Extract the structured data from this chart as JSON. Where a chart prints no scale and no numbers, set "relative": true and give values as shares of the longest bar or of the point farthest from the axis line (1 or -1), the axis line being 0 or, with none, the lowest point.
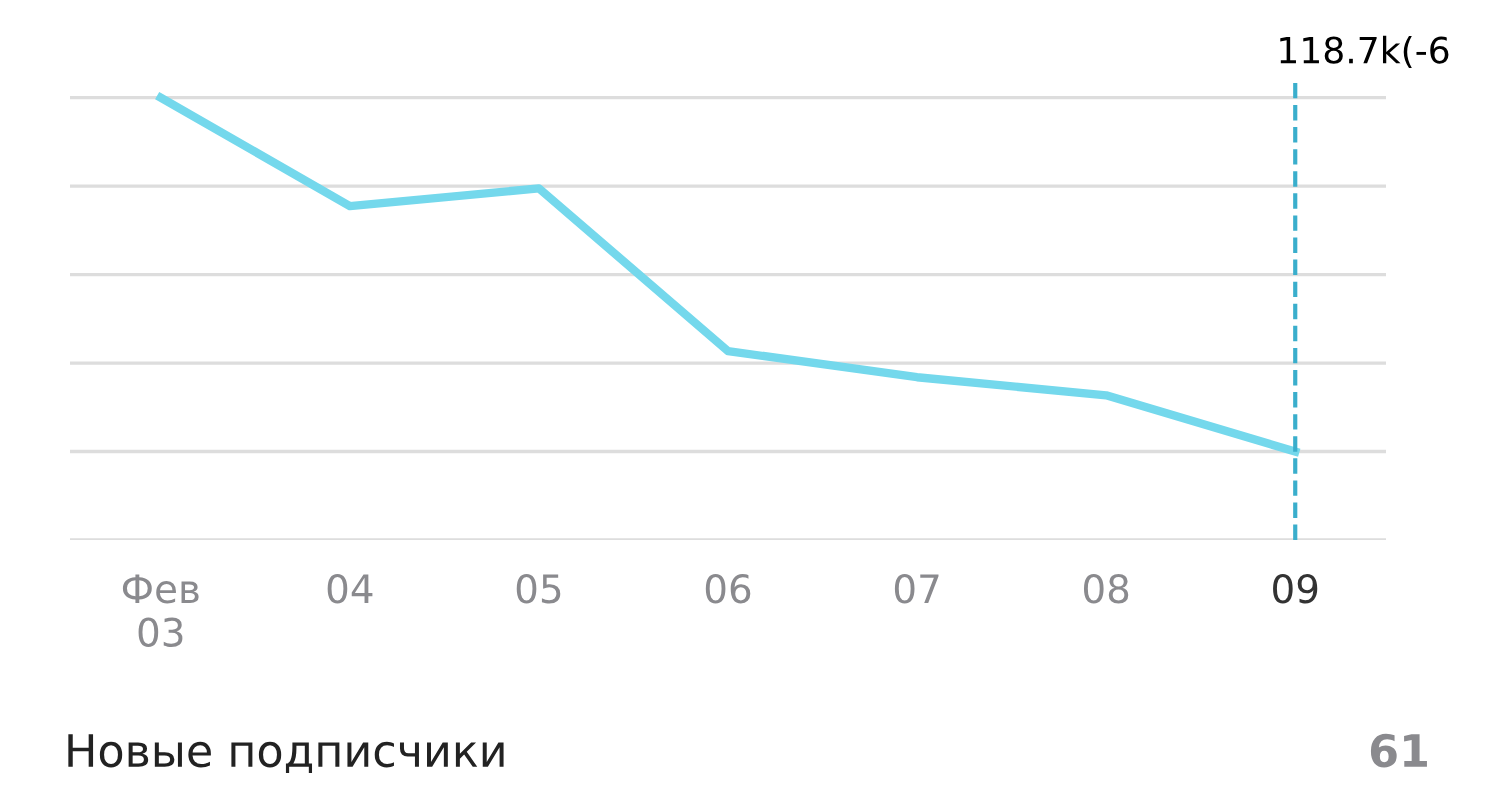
{
  "chart_data": {
    "type": "line",
    "relative": true,
    "categories": [
      "Фев\n03",
      "04",
      "05",
      "06",
      "07",
      "08",
      "09"
    ],
    "series": [
      {
        "color": "#74d8ec",
        "values": [
          1.0,
          0.755,
          0.795,
          0.427,
          0.368,
          0.327,
          0.2
        ]
      }
    ],
    "ref_lines": [
      {
        "axis": "x",
        "value": "09",
        "label": "118.7k(-6",
        "color": "#3aaecc",
        "line_style": "dashed"
      }
    ],
    "grid": "y",
    "marker": "none",
    "line_style": "solid",
    "annotations": [
      "Новые подписчики",
      "61"
    ]
  }
}
